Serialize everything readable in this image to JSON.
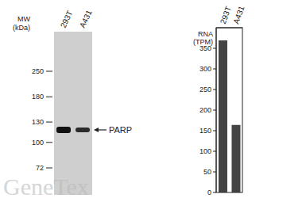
{
  "blot": {
    "mw_label": [
      "MW",
      "(kDa)"
    ],
    "lanes": [
      "293T",
      "A431"
    ],
    "markers": [
      250,
      180,
      130,
      100,
      72
    ],
    "band_label": "PARP",
    "watermark": "GeneTex"
  },
  "chart_data": {
    "type": "bar",
    "y_label": [
      "RNA",
      "(TPM)"
    ],
    "categories": [
      "293T",
      "A431"
    ],
    "values": [
      369,
      164
    ],
    "color": "#444444",
    "ylim": [
      0,
      400
    ],
    "yticks": [
      0,
      50,
      100,
      150,
      200,
      250,
      300,
      350
    ],
    "grid": false
  }
}
